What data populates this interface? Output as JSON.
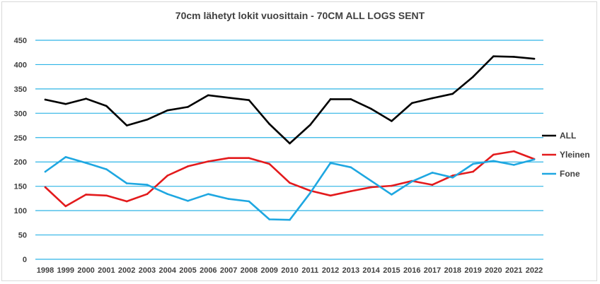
{
  "chart_data": {
    "type": "line",
    "title": "70cm lähetyt lokit vuosittain - 70CM ALL LOGS SENT",
    "xlabel": "",
    "ylabel": "",
    "ylim": [
      0,
      450
    ],
    "yticks": [
      0,
      50,
      100,
      150,
      200,
      250,
      300,
      350,
      400,
      450
    ],
    "grid": true,
    "legend_position": "right",
    "categories": [
      "1998",
      "1999",
      "2000",
      "2001",
      "2002",
      "2003",
      "2004",
      "2005",
      "2006",
      "2007",
      "2008",
      "2009",
      "2010",
      "2011",
      "2012",
      "2013",
      "2014",
      "2015",
      "2016",
      "2017",
      "2018",
      "2019",
      "2020",
      "2021",
      "2022"
    ],
    "series": [
      {
        "name": "ALL",
        "color": "#000000",
        "values": [
          328,
          319,
          330,
          315,
          275,
          287,
          306,
          313,
          337,
          332,
          327,
          278,
          238,
          276,
          329,
          329,
          309,
          284,
          321,
          331,
          340,
          375,
          417,
          416,
          412
        ]
      },
      {
        "name": "Yleinen",
        "color": "#e31a1c",
        "values": [
          148,
          109,
          133,
          131,
          119,
          134,
          172,
          191,
          201,
          208,
          208,
          196,
          157,
          141,
          131,
          140,
          148,
          151,
          161,
          153,
          172,
          180,
          215,
          222,
          206
        ]
      },
      {
        "name": "Fone",
        "color": "#1ea7e1",
        "values": [
          180,
          210,
          198,
          185,
          156,
          153,
          134,
          120,
          134,
          124,
          119,
          82,
          81,
          136,
          198,
          189,
          161,
          133,
          160,
          178,
          168,
          196,
          202,
          194,
          205
        ]
      }
    ],
    "grid_color": "#2eb4e6"
  }
}
